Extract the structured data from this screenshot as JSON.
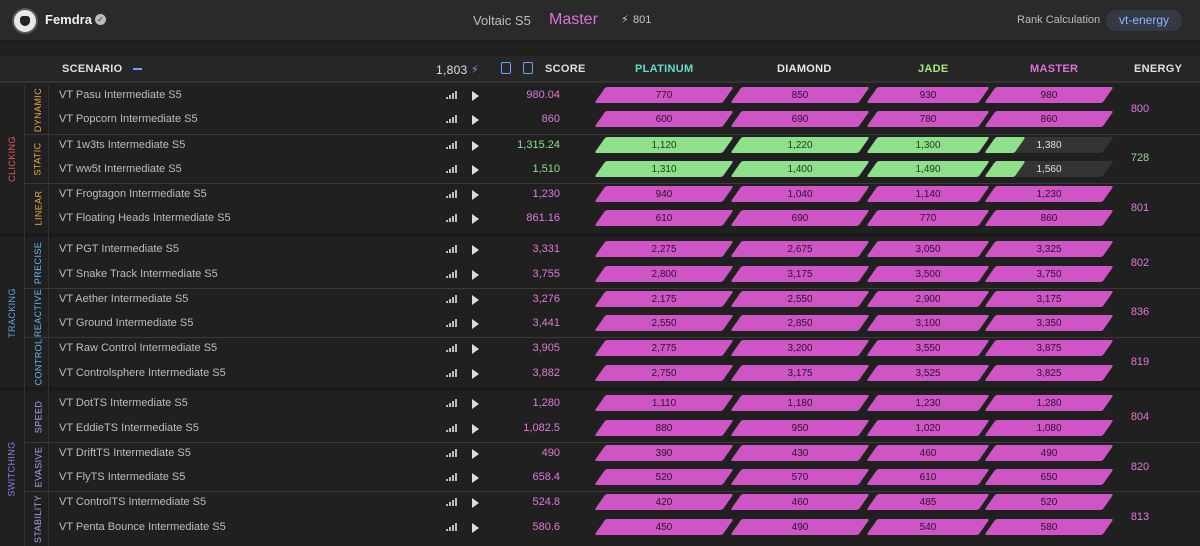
{
  "header": {
    "username": "Femdra",
    "season": "Voltaic S5",
    "rank": "Master",
    "energy": "801",
    "rank_calc_label": "Rank Calculation",
    "rank_calc_value": "vt-energy"
  },
  "table": {
    "col_scenario": "SCENARIO",
    "col_total": "1,803",
    "col_score": "SCORE",
    "col_platinum": "PLATINUM",
    "col_diamond": "DIAMOND",
    "col_jade": "JADE",
    "col_master": "MASTER",
    "col_energy": "ENERGY"
  },
  "colors": {
    "platinum": "#62dcd0",
    "diamond": "#e8e8e8",
    "jade": "#a6e87a",
    "master": "#e070d8",
    "pink_bar": "#cf55c7",
    "green_bar": "#8ee08a"
  },
  "groups": [
    {
      "name": "CLICKING",
      "color": "#e85a5a"
    },
    {
      "name": "TRACKING",
      "color": "#5aa8e8"
    },
    {
      "name": "SWITCHING",
      "color": "#9a7ae0"
    }
  ],
  "subgroups": [
    {
      "name": "DYNAMIC",
      "color": "#e8a84a",
      "energy": "800"
    },
    {
      "name": "STATIC",
      "color": "#e8a84a",
      "energy": "728"
    },
    {
      "name": "LINEAR",
      "color": "#e8a84a",
      "energy": "801"
    },
    {
      "name": "PRECISE",
      "color": "#6ab8e8",
      "energy": "802"
    },
    {
      "name": "REACTIVE",
      "color": "#6ab8e8",
      "energy": "836"
    },
    {
      "name": "CONTROL",
      "color": "#6ab8e8",
      "energy": "819"
    },
    {
      "name": "SPEED",
      "color": "#b89ae8",
      "energy": "804"
    },
    {
      "name": "EVASIVE",
      "color": "#b89ae8",
      "energy": "820"
    },
    {
      "name": "STABILITY",
      "color": "#b89ae8",
      "energy": "813"
    }
  ],
  "rows": [
    {
      "scenario": "VT Pasu Intermediate S5",
      "score": "980.04",
      "t": [
        "770",
        "850",
        "930",
        "980"
      ],
      "filled": 4,
      "tone": "pink"
    },
    {
      "scenario": "VT Popcorn Intermediate S5",
      "score": "860",
      "t": [
        "600",
        "690",
        "780",
        "860"
      ],
      "filled": 4,
      "tone": "pink"
    },
    {
      "scenario": "VT 1w3ts Intermediate S5",
      "score": "1,315.24",
      "t": [
        "1,120",
        "1,220",
        "1,300",
        "1,380"
      ],
      "filled": 3.25,
      "tone": "green"
    },
    {
      "scenario": "VT ww5t Intermediate S5",
      "score": "1,510",
      "t": [
        "1,310",
        "1,400",
        "1,490",
        "1,560"
      ],
      "filled": 3.25,
      "tone": "green"
    },
    {
      "scenario": "VT Frogtagon Intermediate S5",
      "score": "1,230",
      "t": [
        "940",
        "1,040",
        "1,140",
        "1,230"
      ],
      "filled": 4,
      "tone": "pink"
    },
    {
      "scenario": "VT Floating Heads Intermediate S5",
      "score": "861.16",
      "t": [
        "610",
        "690",
        "770",
        "860"
      ],
      "filled": 4,
      "tone": "pink"
    },
    {
      "scenario": "VT PGT Intermediate S5",
      "score": "3,331",
      "t": [
        "2,275",
        "2,675",
        "3,050",
        "3,325"
      ],
      "filled": 4,
      "tone": "pink"
    },
    {
      "scenario": "VT Snake Track Intermediate S5",
      "score": "3,755",
      "t": [
        "2,800",
        "3,175",
        "3,500",
        "3,750"
      ],
      "filled": 4,
      "tone": "pink"
    },
    {
      "scenario": "VT Aether Intermediate S5",
      "score": "3,276",
      "t": [
        "2,175",
        "2,550",
        "2,900",
        "3,175"
      ],
      "filled": 4,
      "tone": "pink"
    },
    {
      "scenario": "VT Ground Intermediate S5",
      "score": "3,441",
      "t": [
        "2,550",
        "2,850",
        "3,100",
        "3,350"
      ],
      "filled": 4,
      "tone": "pink"
    },
    {
      "scenario": "VT Raw Control Intermediate S5",
      "score": "3,905",
      "t": [
        "2,775",
        "3,200",
        "3,550",
        "3,875"
      ],
      "filled": 4,
      "tone": "pink"
    },
    {
      "scenario": "VT Controlsphere Intermediate S5",
      "score": "3,882",
      "t": [
        "2,750",
        "3,175",
        "3,525",
        "3,825"
      ],
      "filled": 4,
      "tone": "pink"
    },
    {
      "scenario": "VT DotTS Intermediate S5",
      "score": "1,280",
      "t": [
        "1,110",
        "1,180",
        "1,230",
        "1,280"
      ],
      "filled": 4,
      "tone": "pink"
    },
    {
      "scenario": "VT EddieTS Intermediate S5",
      "score": "1,082.5",
      "t": [
        "880",
        "950",
        "1,020",
        "1,080"
      ],
      "filled": 4,
      "tone": "pink"
    },
    {
      "scenario": "VT DriftTS Intermediate S5",
      "score": "490",
      "t": [
        "390",
        "430",
        "460",
        "490"
      ],
      "filled": 4,
      "tone": "pink"
    },
    {
      "scenario": "VT FlyTS Intermediate S5",
      "score": "658.4",
      "t": [
        "520",
        "570",
        "610",
        "650"
      ],
      "filled": 4,
      "tone": "pink"
    },
    {
      "scenario": "VT ControlTS Intermediate S5",
      "score": "524.8",
      "t": [
        "420",
        "460",
        "485",
        "520"
      ],
      "filled": 4,
      "tone": "pink"
    },
    {
      "scenario": "VT Penta Bounce Intermediate S5",
      "score": "580.6",
      "t": [
        "450",
        "490",
        "540",
        "580"
      ],
      "filled": 4,
      "tone": "pink"
    }
  ]
}
